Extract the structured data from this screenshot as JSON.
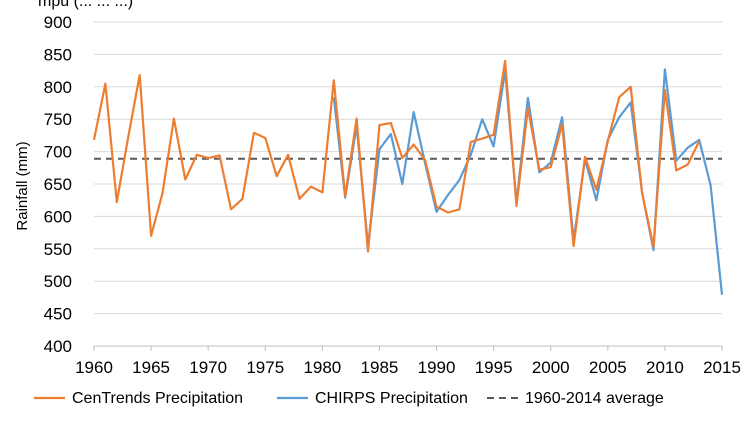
{
  "partial_title": "mpu (... ... ...)",
  "chart_data": {
    "type": "line",
    "title": "",
    "xlabel": "",
    "ylabel": "Rainfall (mm)",
    "ylim": [
      400,
      900
    ],
    "yticks": [
      400,
      450,
      500,
      550,
      600,
      650,
      700,
      750,
      800,
      850,
      900
    ],
    "xlim": [
      1960,
      2015
    ],
    "xticks": [
      1960,
      1965,
      1970,
      1975,
      1980,
      1985,
      1990,
      1995,
      2000,
      2005,
      2010,
      2015
    ],
    "grid": "horizontal",
    "legend_position": "bottom",
    "series": [
      {
        "name": "CenTrends Precipitation",
        "color": "#ED7D31",
        "x": [
          1960,
          1961,
          1962,
          1963,
          1964,
          1965,
          1966,
          1967,
          1968,
          1969,
          1970,
          1971,
          1972,
          1973,
          1974,
          1975,
          1976,
          1977,
          1978,
          1979,
          1980,
          1981,
          1982,
          1983,
          1984,
          1985,
          1986,
          1987,
          1988,
          1989,
          1990,
          1991,
          1992,
          1993,
          1994,
          1995,
          1996,
          1997,
          1998,
          1999,
          2000,
          2001,
          2002,
          2003,
          2004,
          2005,
          2006,
          2007,
          2008,
          2009,
          2010,
          2011,
          2012,
          2013
        ],
        "y": [
          718,
          805,
          622,
          723,
          818,
          570,
          636,
          751,
          657,
          695,
          690,
          694,
          611,
          627,
          729,
          721,
          662,
          695,
          627,
          646,
          637,
          810,
          631,
          751,
          546,
          741,
          744,
          690,
          711,
          687,
          615,
          606,
          611,
          715,
          720,
          726,
          840,
          616,
          767,
          672,
          676,
          742,
          554,
          692,
          641,
          716,
          784,
          800,
          636,
          553,
          795,
          671,
          680,
          716
        ]
      },
      {
        "name": "CHIRPS Precipitation",
        "color": "#5B9BD5",
        "x": [
          1981,
          1982,
          1983,
          1984,
          1985,
          1986,
          1987,
          1988,
          1989,
          1990,
          1991,
          1992,
          1993,
          1994,
          1995,
          1996,
          1997,
          1998,
          1999,
          2000,
          2001,
          2002,
          2003,
          2004,
          2005,
          2006,
          2007,
          2008,
          2009,
          2010,
          2011,
          2012,
          2013,
          2014,
          2015
        ],
        "y": [
          784,
          629,
          740,
          555,
          704,
          727,
          650,
          761,
          682,
          607,
          633,
          656,
          695,
          750,
          708,
          825,
          621,
          783,
          668,
          683,
          753,
          563,
          688,
          625,
          718,
          753,
          776,
          637,
          548,
          827,
          686,
          706,
          718,
          648,
          479
        ]
      },
      {
        "name": "1960-2014 average",
        "color": "#595959",
        "dashed": true,
        "x": [
          1960,
          2015
        ],
        "y": [
          689,
          689
        ]
      }
    ]
  }
}
